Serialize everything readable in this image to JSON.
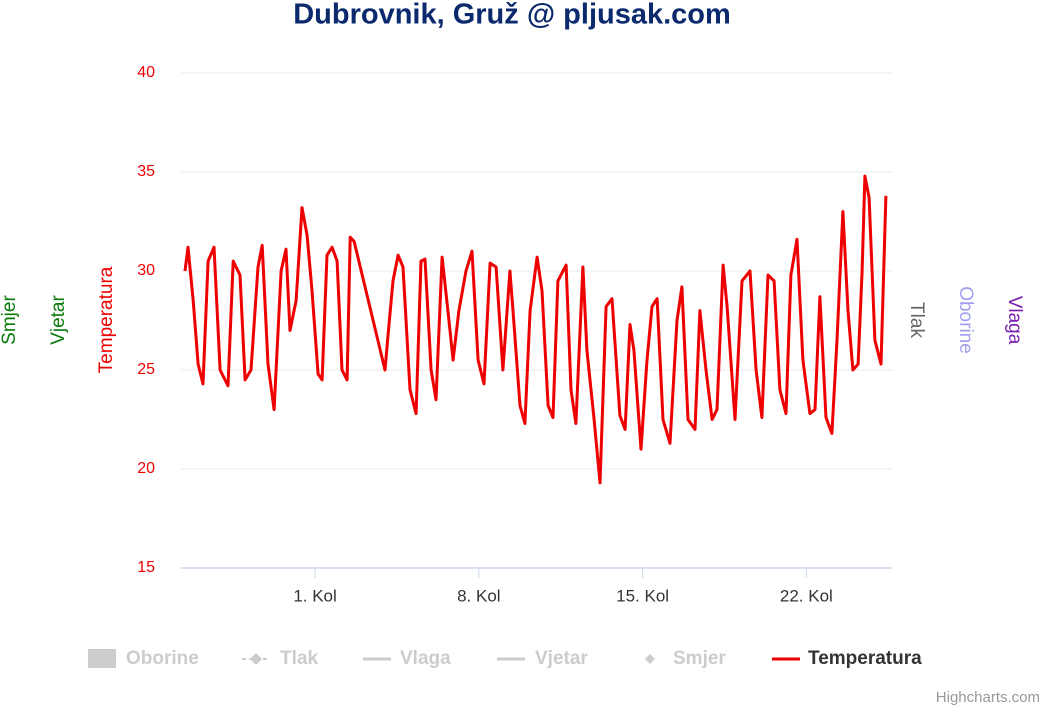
{
  "chart_data": {
    "type": "line",
    "title": "Dubrovnik, Gruž @ pljusak.com",
    "y_axis_titles": {
      "left": [
        "Smjer",
        "Vjetar",
        "Temperatura"
      ],
      "right": [
        "Tlak",
        "Oborine",
        "Vlaga"
      ]
    },
    "x": [
      -4.56,
      -4.43,
      -4.21,
      -4.0,
      -3.79,
      -3.57,
      -3.32,
      -3.06,
      -2.72,
      -2.5,
      -2.21,
      -1.99,
      -1.74,
      -1.44,
      -1.26,
      -1.01,
      -0.75,
      -0.45,
      -0.24,
      -0.07,
      0.19,
      0.44,
      0.66,
      0.87,
      1.13,
      1.3,
      1.51,
      1.73,
      1.94,
      2.15,
      2.37,
      2.5,
      2.67,
      3.99,
      4.12,
      4.33,
      4.55,
      4.76,
      5.06,
      5.32,
      5.53,
      5.7,
      5.96,
      6.17,
      6.43,
      6.68,
      6.9,
      7.15,
      7.45,
      7.71,
      7.97,
      8.22,
      8.48,
      8.74,
      9.03,
      9.33,
      9.46,
      9.76,
      9.97,
      10.19,
      10.49,
      10.7,
      10.96,
      11.17,
      11.38,
      11.73,
      11.94,
      12.15,
      12.45,
      12.62,
      12.92,
      13.18,
      13.44,
      13.69,
      14.03,
      14.25,
      14.46,
      14.63,
      14.93,
      15.19,
      15.4,
      15.62,
      15.87,
      16.17,
      16.47,
      16.68,
      16.94,
      17.24,
      17.45,
      17.71,
      17.97,
      18.18,
      18.44,
      18.61,
      18.95,
      19.25,
      19.59,
      19.85,
      20.1,
      20.36,
      20.62,
      20.87,
      21.13,
      21.34,
      21.6,
      21.85,
      22.15,
      22.37,
      22.58,
      22.84,
      23.09,
      23.31,
      23.56,
      23.78,
      23.99,
      24.21,
      24.38,
      24.5,
      24.68,
      24.93,
      25.19,
      25.4
    ],
    "series": [
      {
        "name": "Temperatura",
        "color": "#ee0000",
        "values": [
          30.0,
          31.2,
          28.5,
          25.3,
          24.3,
          30.5,
          31.2,
          25.0,
          24.2,
          30.5,
          29.8,
          24.5,
          25.0,
          30.2,
          31.3,
          25.3,
          23.0,
          30.0,
          31.1,
          27.0,
          28.5,
          33.2,
          31.8,
          29.0,
          24.8,
          24.5,
          30.8,
          31.2,
          30.5,
          25.0,
          24.5,
          31.7,
          31.5,
          25.0,
          26.8,
          29.5,
          30.8,
          30.2,
          24.0,
          22.8,
          30.5,
          30.6,
          25.0,
          23.5,
          30.7,
          28.0,
          25.5,
          28.0,
          30.0,
          31.0,
          25.5,
          24.3,
          30.4,
          30.2,
          25.0,
          30.0,
          28.0,
          23.2,
          22.3,
          28.0,
          30.7,
          29.0,
          23.2,
          22.6,
          29.5,
          30.3,
          24.0,
          22.3,
          30.2,
          26.0,
          22.6,
          19.3,
          28.2,
          28.6,
          22.7,
          22.0,
          27.3,
          26.0,
          21.0,
          25.5,
          28.2,
          28.6,
          22.5,
          21.3,
          27.5,
          29.2,
          22.5,
          22.0,
          28.0,
          25.0,
          22.5,
          23.0,
          30.3,
          28.2,
          22.5,
          29.5,
          30.0,
          25.0,
          22.6,
          29.8,
          29.5,
          24.0,
          22.8,
          29.8,
          31.6,
          25.5,
          22.8,
          23.0,
          28.7,
          22.6,
          21.8,
          26.5,
          33.0,
          28.0,
          25.0,
          25.3,
          30.0,
          34.8,
          33.7,
          26.5,
          25.3,
          33.8
        ]
      }
    ],
    "legend": [
      {
        "name": "Oborine",
        "visible": false
      },
      {
        "name": "Tlak",
        "visible": false
      },
      {
        "name": "Vlaga",
        "visible": false
      },
      {
        "name": "Vjetar",
        "visible": false
      },
      {
        "name": "Smjer",
        "visible": false
      }
    ],
    "xlim": [
      -4.73,
      25.66
    ],
    "xticks": [
      {
        "value": 1,
        "label": "1. Kol"
      },
      {
        "value": 8,
        "label": "8. Kol"
      },
      {
        "value": 15,
        "label": "15. Kol"
      },
      {
        "value": 22,
        "label": "22. Kol"
      }
    ],
    "ylim": [
      15,
      40
    ],
    "yticks": [
      15,
      20,
      25,
      30,
      35,
      40
    ],
    "grid": true,
    "credit": "Highcharts.com"
  }
}
